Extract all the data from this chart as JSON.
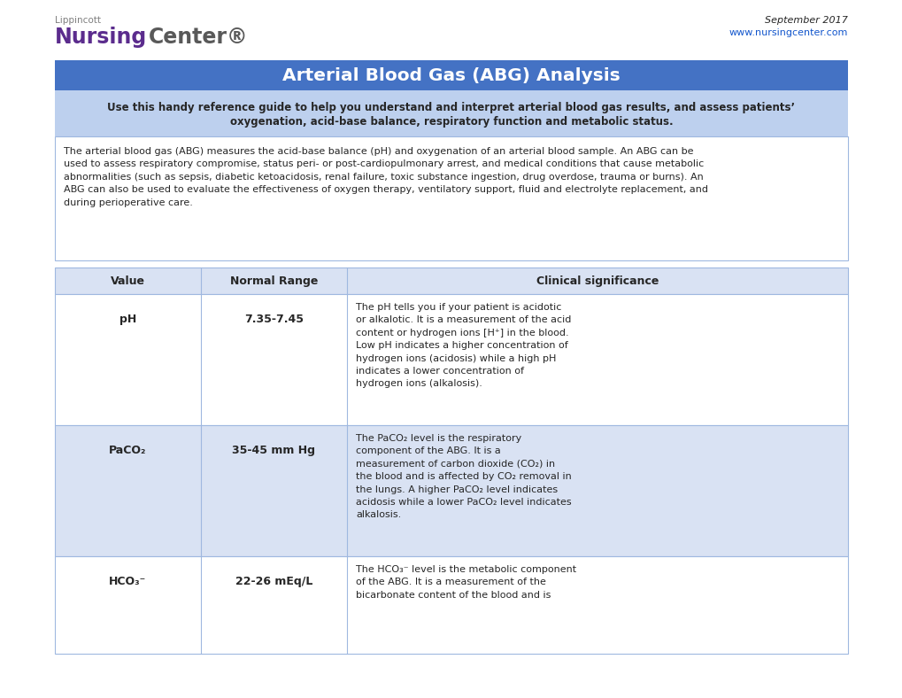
{
  "title": "Arterial Blood Gas (ABG) Analysis",
  "subtitle_line1": "Use this handy reference guide to help you understand and interpret arterial blood gas results, and assess patients’",
  "subtitle_line2": "oxygenation, acid-base balance, respiratory function and metabolic status.",
  "intro_text": "The arterial blood gas (ABG) measures the acid-base balance (pH) and oxygenation of an arterial blood sample. An ABG can be\nused to assess respiratory compromise, status peri- or post-cardiopulmonary arrest, and medical conditions that cause metabolic\nabnormalities (such as sepsis, diabetic ketoacidosis, renal failure, toxic substance ingestion, drug overdose, trauma or burns). An\nABG can also be used to evaluate the effectiveness of oxygen therapy, ventilatory support, fluid and electrolyte replacement, and\nduring perioperative care.",
  "lippincott_text": "Lippincott",
  "nursing_text": "Nursing",
  "center_text": "Center",
  "registered_text": "®",
  "date_text": "September 2017",
  "url_text": "www.nursingcenter.com",
  "col_headers": [
    "Value",
    "Normal Range",
    "Clinical significance"
  ],
  "rows": [
    {
      "value": "pH",
      "value_sub": "",
      "normal": "7.35-7.45",
      "clinical": "The pH tells you if your patient is acidotic\nor alkalotic. It is a measurement of the acid\ncontent or hydrogen ions [H⁺] in the blood.\nLow pH indicates a higher concentration of\nhydrogen ions (acidosis) while a high pH\nindicates a lower concentration of\nhydrogen ions (alkalosis).",
      "row_bg": "#FFFFFF"
    },
    {
      "value": "PaCO₂",
      "value_sub": "",
      "normal": "35-45 mm Hg",
      "clinical": "The PaCO₂ level is the respiratory\ncomponent of the ABG. It is a\nmeasurement of carbon dioxide (CO₂) in\nthe blood and is affected by CO₂ removal in\nthe lungs. A higher PaCO₂ level indicates\nacidosis while a lower PaCO₂ level indicates\nalkalosis.",
      "row_bg": "#D9E2F3"
    },
    {
      "value": "HCO₃⁻",
      "value_sub": "",
      "normal": "22-26 mEq/L",
      "clinical": "The HCO₃⁻ level is the metabolic component\nof the ABG. It is a measurement of the\nbicarbonate content of the blood and is",
      "row_bg": "#FFFFFF"
    }
  ],
  "header_bg": "#4472C4",
  "header_text_color": "#FFFFFF",
  "subheader_bg": "#BDD0EE",
  "table_header_bg": "#D9E2F3",
  "border_color": "#9FB8E0",
  "nursing_color": "#5B2C8D",
  "lippincott_color": "#7F7F7F",
  "gray_color": "#595959",
  "url_color": "#1155CC",
  "body_text_color": "#262626",
  "bg_color": "#FFFFFF"
}
